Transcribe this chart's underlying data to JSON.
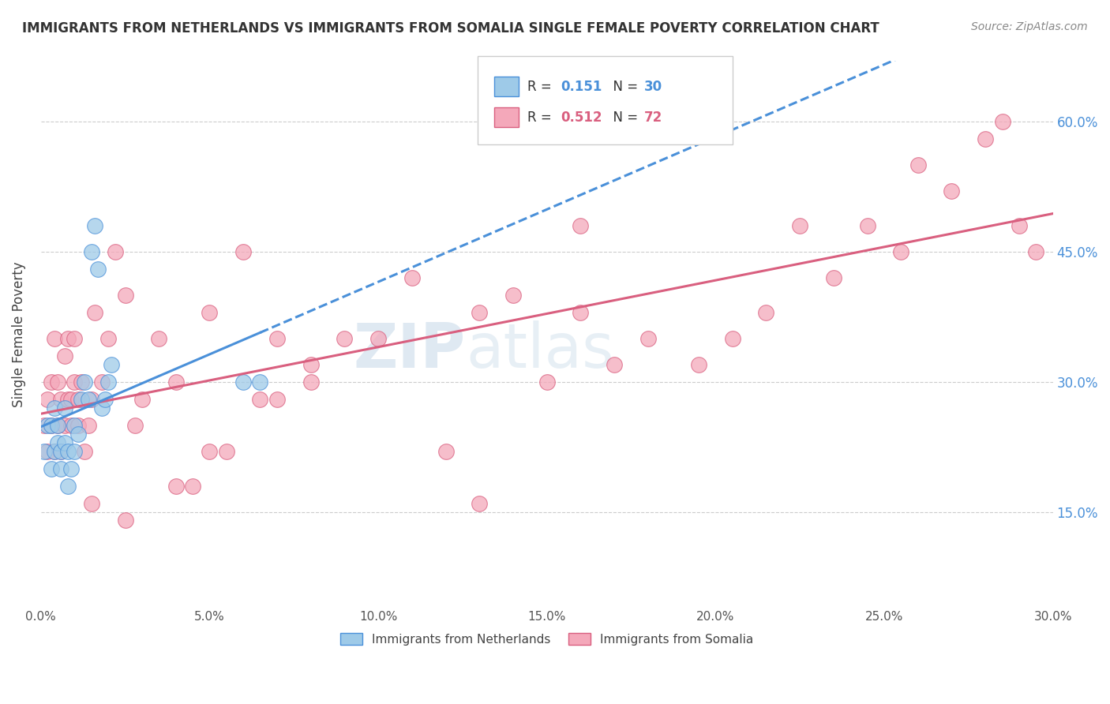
{
  "title": "IMMIGRANTS FROM NETHERLANDS VS IMMIGRANTS FROM SOMALIA SINGLE FEMALE POVERTY CORRELATION CHART",
  "source": "Source: ZipAtlas.com",
  "ylabel": "Single Female Poverty",
  "legend_label1": "Immigrants from Netherlands",
  "legend_label2": "Immigrants from Somalia",
  "R1": 0.151,
  "N1": 30,
  "R2": 0.512,
  "N2": 72,
  "xlim": [
    0.0,
    0.3
  ],
  "ylim": [
    0.04,
    0.67
  ],
  "yticks": [
    0.15,
    0.3,
    0.45,
    0.6
  ],
  "xticks": [
    0.0,
    0.05,
    0.1,
    0.15,
    0.2,
    0.25,
    0.3
  ],
  "color_netherlands": "#9ecae8",
  "color_somalia": "#f4a8ba",
  "line_color_netherlands": "#4a90d9",
  "line_color_somalia": "#d95f7f",
  "background_color": "#ffffff",
  "netherlands_x": [
    0.001,
    0.002,
    0.003,
    0.003,
    0.004,
    0.004,
    0.005,
    0.005,
    0.006,
    0.006,
    0.007,
    0.007,
    0.008,
    0.008,
    0.009,
    0.01,
    0.01,
    0.011,
    0.012,
    0.013,
    0.014,
    0.015,
    0.016,
    0.017,
    0.018,
    0.019,
    0.02,
    0.021,
    0.06,
    0.065
  ],
  "netherlands_y": [
    0.22,
    0.25,
    0.2,
    0.25,
    0.22,
    0.27,
    0.23,
    0.25,
    0.2,
    0.22,
    0.23,
    0.27,
    0.22,
    0.18,
    0.2,
    0.22,
    0.25,
    0.24,
    0.28,
    0.3,
    0.28,
    0.45,
    0.48,
    0.43,
    0.27,
    0.28,
    0.3,
    0.32,
    0.3,
    0.3
  ],
  "somalia_x": [
    0.001,
    0.002,
    0.002,
    0.003,
    0.003,
    0.004,
    0.004,
    0.005,
    0.005,
    0.006,
    0.006,
    0.007,
    0.007,
    0.008,
    0.008,
    0.009,
    0.009,
    0.01,
    0.01,
    0.011,
    0.011,
    0.012,
    0.013,
    0.014,
    0.015,
    0.016,
    0.018,
    0.02,
    0.022,
    0.025,
    0.028,
    0.03,
    0.035,
    0.04,
    0.045,
    0.05,
    0.055,
    0.06,
    0.065,
    0.07,
    0.08,
    0.09,
    0.1,
    0.11,
    0.12,
    0.13,
    0.14,
    0.15,
    0.16,
    0.17,
    0.18,
    0.195,
    0.205,
    0.215,
    0.225,
    0.235,
    0.245,
    0.255,
    0.26,
    0.27,
    0.28,
    0.285,
    0.29,
    0.295,
    0.16,
    0.13,
    0.08,
    0.07,
    0.05,
    0.04,
    0.025,
    0.015
  ],
  "somalia_y": [
    0.25,
    0.22,
    0.28,
    0.25,
    0.3,
    0.22,
    0.35,
    0.25,
    0.3,
    0.22,
    0.28,
    0.25,
    0.33,
    0.28,
    0.35,
    0.25,
    0.28,
    0.3,
    0.35,
    0.25,
    0.28,
    0.3,
    0.22,
    0.25,
    0.28,
    0.38,
    0.3,
    0.35,
    0.45,
    0.4,
    0.25,
    0.28,
    0.35,
    0.3,
    0.18,
    0.38,
    0.22,
    0.45,
    0.28,
    0.35,
    0.3,
    0.35,
    0.35,
    0.42,
    0.22,
    0.16,
    0.4,
    0.3,
    0.38,
    0.32,
    0.35,
    0.32,
    0.35,
    0.38,
    0.48,
    0.42,
    0.48,
    0.45,
    0.55,
    0.52,
    0.58,
    0.6,
    0.48,
    0.45,
    0.48,
    0.38,
    0.32,
    0.28,
    0.22,
    0.18,
    0.14,
    0.16
  ]
}
